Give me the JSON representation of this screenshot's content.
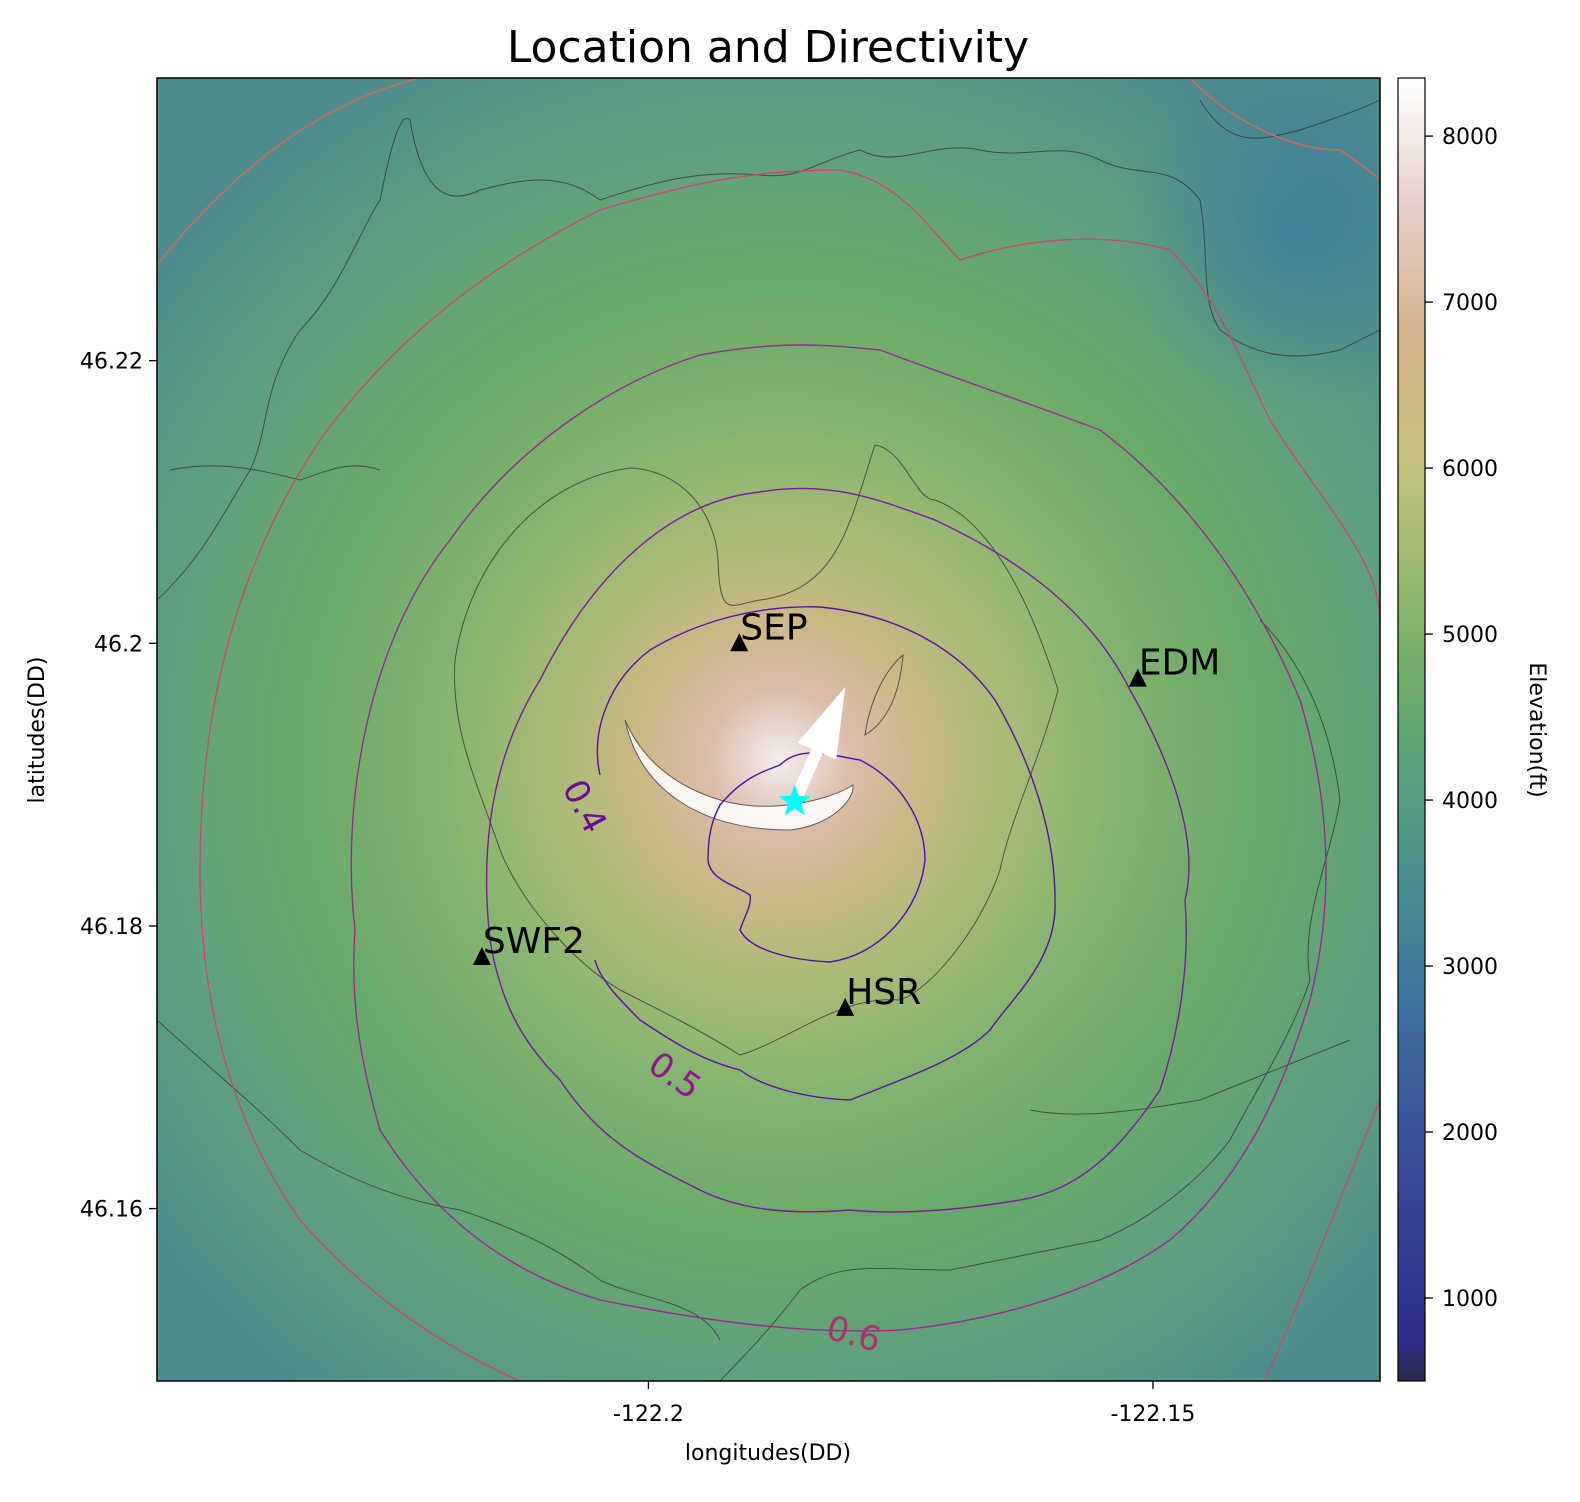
{
  "chart_data": {
    "type": "heatmap",
    "title": "Location and Directivity",
    "xlabel": "longitudes(DD)",
    "ylabel": "latitudes(DD)",
    "xlim": [
      -122.2487,
      -122.1275
    ],
    "ylim": [
      46.1478,
      46.24
    ],
    "x_ticks": [
      {
        "value": -122.2,
        "label": "-122.2"
      },
      {
        "value": -122.15,
        "label": "-122.15"
      }
    ],
    "y_ticks": [
      {
        "value": 46.16,
        "label": "46.16"
      },
      {
        "value": 46.18,
        "label": "46.18"
      },
      {
        "value": 46.2,
        "label": "46.2"
      },
      {
        "value": 46.22,
        "label": "46.22"
      }
    ],
    "grid": false,
    "colorbar": {
      "label": "Elevation(ft)",
      "range": [
        500,
        8350
      ],
      "ticks": [
        1000,
        2000,
        3000,
        4000,
        5000,
        6000,
        7000,
        8000
      ],
      "colormap": "gist_earth-like (navy → teal → green → khaki → tan → white)"
    },
    "stations": [
      {
        "name": "SEP",
        "lon": -122.191,
        "lat": 46.2
      },
      {
        "name": "EDM",
        "lon": -122.1515,
        "lat": 46.1975
      },
      {
        "name": "SWF2",
        "lon": -122.2165,
        "lat": 46.1778
      },
      {
        "name": "HSR",
        "lon": -122.1805,
        "lat": 46.1742
      }
    ],
    "source": {
      "lon": -122.1855,
      "lat": 46.1888,
      "marker": "cyan star",
      "color": "#00ffff"
    },
    "directivity_arrow": {
      "from": {
        "lon": -122.1855,
        "lat": 46.1888
      },
      "to": {
        "lon": -122.1805,
        "lat": 46.1969
      },
      "color": "#ffffff"
    },
    "contour_labels": [
      {
        "text": "0.4",
        "lon": -122.2065,
        "lat": 46.1884,
        "rotation": 62,
        "color": "#6a0d91"
      },
      {
        "text": "0.5",
        "lon": -122.1975,
        "lat": 46.1693,
        "rotation": 35,
        "color": "#8b1a8b"
      },
      {
        "text": "0.6",
        "lon": -122.1797,
        "lat": 46.151,
        "rotation": 15,
        "color": "#b0306e"
      }
    ],
    "contour_colors": [
      "#4a12b0",
      "#5a10a8",
      "#7a1aa0",
      "#9a2a90",
      "#b0307a",
      "#c84a6a",
      "#d8685c"
    ]
  }
}
